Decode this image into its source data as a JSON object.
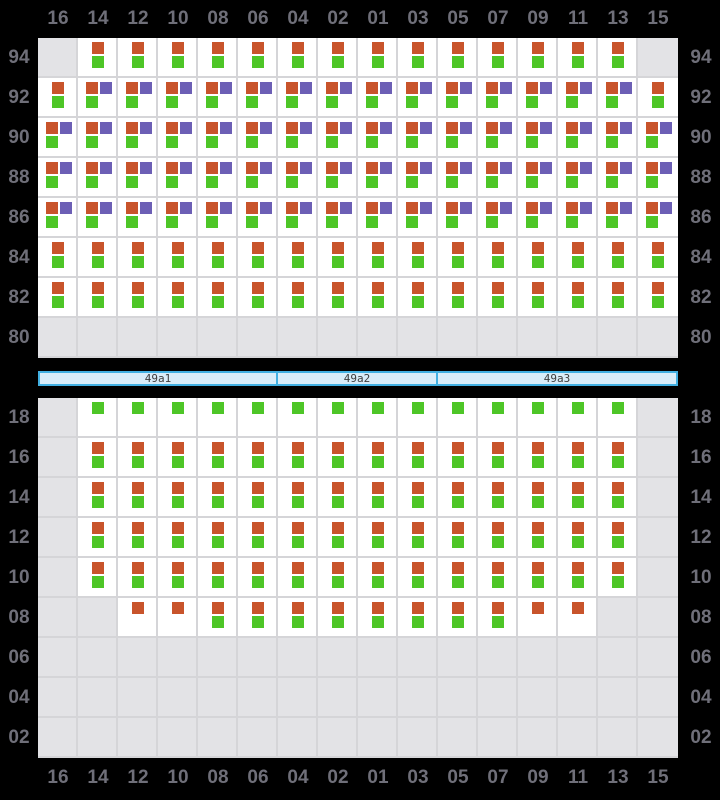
{
  "columns": [
    "16",
    "14",
    "12",
    "10",
    "08",
    "06",
    "04",
    "02",
    "01",
    "03",
    "05",
    "07",
    "09",
    "11",
    "13",
    "15"
  ],
  "colors": {
    "background": "#000000",
    "cell": "#ffffff",
    "cell_disabled": "#e3e3e6",
    "grid_line": "#d5d5d8",
    "orange_marker": "#c8542b",
    "green_marker": "#4ec627",
    "purple_marker": "#6c5fb5",
    "label_text": "#6f6f79",
    "section_bar_fill": "#d9edf9",
    "section_bar_border": "#42b0e2",
    "section_bar_text": "#3c3c3c"
  },
  "cell_types": {
    "e": {
      "disabled": true,
      "markers": []
    },
    "og": {
      "disabled": false,
      "markers": [
        [
          "orange",
          "top-center"
        ],
        [
          "green",
          "bottom-center"
        ]
      ]
    },
    "opg": {
      "disabled": false,
      "markers": [
        [
          "orange",
          "top-left"
        ],
        [
          "purple",
          "top-right"
        ],
        [
          "green",
          "bottom-left"
        ]
      ]
    },
    "o": {
      "disabled": false,
      "markers": [
        [
          "orange",
          "top-center"
        ]
      ]
    },
    "g": {
      "disabled": false,
      "markers": [
        [
          "green",
          "top-center"
        ]
      ]
    }
  },
  "top_grid": {
    "rows": [
      {
        "label": "94",
        "cells": [
          "e",
          "og",
          "og",
          "og",
          "og",
          "og",
          "og",
          "og",
          "og",
          "og",
          "og",
          "og",
          "og",
          "og",
          "og",
          "e"
        ]
      },
      {
        "label": "92",
        "cells": [
          "og",
          "opg",
          "opg",
          "opg",
          "opg",
          "opg",
          "opg",
          "opg",
          "opg",
          "opg",
          "opg",
          "opg",
          "opg",
          "opg",
          "opg",
          "og"
        ]
      },
      {
        "label": "90",
        "cells": [
          "opg",
          "opg",
          "opg",
          "opg",
          "opg",
          "opg",
          "opg",
          "opg",
          "opg",
          "opg",
          "opg",
          "opg",
          "opg",
          "opg",
          "opg",
          "opg"
        ]
      },
      {
        "label": "88",
        "cells": [
          "opg",
          "opg",
          "opg",
          "opg",
          "opg",
          "opg",
          "opg",
          "opg",
          "opg",
          "opg",
          "opg",
          "opg",
          "opg",
          "opg",
          "opg",
          "opg"
        ]
      },
      {
        "label": "86",
        "cells": [
          "opg",
          "opg",
          "opg",
          "opg",
          "opg",
          "opg",
          "opg",
          "opg",
          "opg",
          "opg",
          "opg",
          "opg",
          "opg",
          "opg",
          "opg",
          "opg"
        ]
      },
      {
        "label": "84",
        "cells": [
          "og",
          "og",
          "og",
          "og",
          "og",
          "og",
          "og",
          "og",
          "og",
          "og",
          "og",
          "og",
          "og",
          "og",
          "og",
          "og"
        ]
      },
      {
        "label": "82",
        "cells": [
          "og",
          "og",
          "og",
          "og",
          "og",
          "og",
          "og",
          "og",
          "og",
          "og",
          "og",
          "og",
          "og",
          "og",
          "og",
          "og"
        ]
      },
      {
        "label": "80",
        "cells": [
          "e",
          "e",
          "e",
          "e",
          "e",
          "e",
          "e",
          "e",
          "e",
          "e",
          "e",
          "e",
          "e",
          "e",
          "e",
          "e"
        ]
      }
    ]
  },
  "sections": [
    {
      "label": "49a1",
      "span": 6
    },
    {
      "label": "49a2",
      "span": 4
    },
    {
      "label": "49a3",
      "span": 6
    }
  ],
  "bottom_grid": {
    "rows": [
      {
        "label": "18",
        "cells": [
          "e",
          "g",
          "g",
          "g",
          "g",
          "g",
          "g",
          "g",
          "g",
          "g",
          "g",
          "g",
          "g",
          "g",
          "g",
          "e"
        ]
      },
      {
        "label": "16",
        "cells": [
          "e",
          "og",
          "og",
          "og",
          "og",
          "og",
          "og",
          "og",
          "og",
          "og",
          "og",
          "og",
          "og",
          "og",
          "og",
          "e"
        ]
      },
      {
        "label": "14",
        "cells": [
          "e",
          "og",
          "og",
          "og",
          "og",
          "og",
          "og",
          "og",
          "og",
          "og",
          "og",
          "og",
          "og",
          "og",
          "og",
          "e"
        ]
      },
      {
        "label": "12",
        "cells": [
          "e",
          "og",
          "og",
          "og",
          "og",
          "og",
          "og",
          "og",
          "og",
          "og",
          "og",
          "og",
          "og",
          "og",
          "og",
          "e"
        ]
      },
      {
        "label": "10",
        "cells": [
          "e",
          "og",
          "og",
          "og",
          "og",
          "og",
          "og",
          "og",
          "og",
          "og",
          "og",
          "og",
          "og",
          "og",
          "og",
          "e"
        ]
      },
      {
        "label": "08",
        "cells": [
          "e",
          "e",
          "o",
          "o",
          "og",
          "og",
          "og",
          "og",
          "og",
          "og",
          "og",
          "og",
          "o",
          "o",
          "e",
          "e"
        ]
      },
      {
        "label": "06",
        "cells": [
          "e",
          "e",
          "e",
          "e",
          "e",
          "e",
          "e",
          "e",
          "e",
          "e",
          "e",
          "e",
          "e",
          "e",
          "e",
          "e"
        ]
      },
      {
        "label": "04",
        "cells": [
          "e",
          "e",
          "e",
          "e",
          "e",
          "e",
          "e",
          "e",
          "e",
          "e",
          "e",
          "e",
          "e",
          "e",
          "e",
          "e"
        ]
      },
      {
        "label": "02",
        "cells": [
          "e",
          "e",
          "e",
          "e",
          "e",
          "e",
          "e",
          "e",
          "e",
          "e",
          "e",
          "e",
          "e",
          "e",
          "e",
          "e"
        ]
      }
    ]
  }
}
